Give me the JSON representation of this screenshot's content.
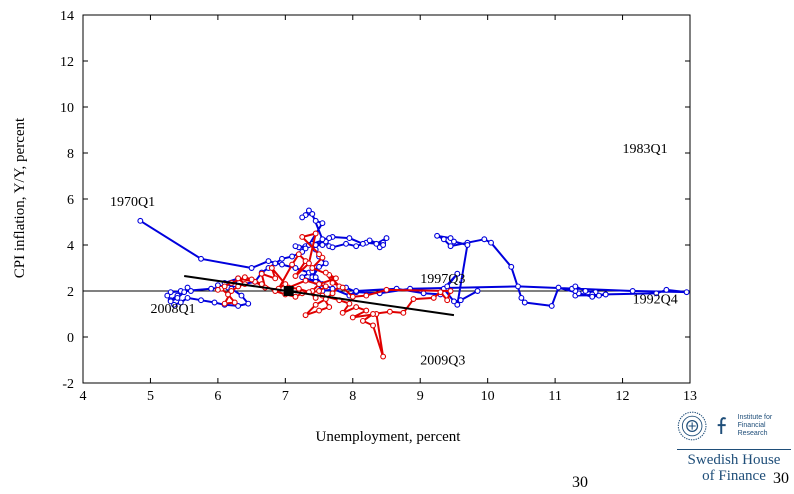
{
  "chart_data": {
    "type": "line",
    "xlabel": "Unemployment, percent",
    "ylabel": "CPI inflation, Y/Y, percent",
    "xlim": [
      4,
      13
    ],
    "ylim": [
      -2,
      14
    ],
    "xticks": [
      4,
      5,
      6,
      7,
      8,
      9,
      10,
      11,
      12,
      13
    ],
    "yticks": [
      -2,
      0,
      2,
      4,
      6,
      8,
      10,
      12,
      14
    ],
    "reference_line_y": 2,
    "colors": {
      "series1": "#0000dd",
      "series2": "#e00000",
      "trend": "#000000"
    },
    "series": [
      {
        "color": "#0000dd",
        "x": [
          4.85,
          5.75,
          6.5,
          6.75,
          6.95,
          7.15,
          7.35,
          7.4,
          7.5,
          7.25,
          7.45,
          7.55,
          7.9,
          8.05,
          8.4,
          8.85,
          10.45,
          12.15,
          12.95,
          12.65,
          12.5,
          11.75,
          11.3,
          11.35,
          11.3,
          11.25,
          11.3,
          11.45,
          11.6,
          11.55,
          11.65,
          11.75,
          11.55,
          11.05,
          10.95,
          10.55,
          10.5,
          10.35,
          10.05,
          9.95,
          9.7,
          9.45,
          9.35,
          9.25,
          9.45,
          9.5,
          9.7,
          9.55,
          9.6,
          9.85,
          9.6,
          9.5,
          9.35,
          9.55,
          9.4,
          9.3,
          9.05,
          8.65,
          8.05,
          7.95,
          7.7,
          7.55,
          7.45,
          7.4,
          7.6,
          7.5,
          7.45,
          7.4,
          7.55,
          7.6,
          7.65,
          7.7,
          7.9,
          8.05,
          8.2,
          8.35,
          8.5,
          8.45,
          8.4,
          8.45,
          8.25,
          8.15,
          7.95,
          7.7,
          7.55,
          7.3,
          7.45,
          7.6,
          7.65,
          7.55,
          7.4,
          7.3,
          7.25,
          7.35,
          7.45,
          7.55,
          7.35,
          7.2,
          7.15,
          7.3,
          7.25,
          7.1,
          6.95,
          6.85,
          6.75,
          6.65,
          6.55,
          6.2,
          5.9,
          5.3,
          5.25,
          5.3,
          5.4,
          5.45,
          5.6,
          5.55,
          5.5,
          5.4,
          5.3,
          5.35,
          5.45,
          5.55,
          5.75,
          5.95,
          6.1,
          6.3,
          6.45,
          6.35,
          6.2,
          6.1,
          6.3,
          6.25,
          6.15,
          6.05,
          6.0,
          6.15,
          6.2
        ],
        "y": [
          5.05,
          3.4,
          3.0,
          3.3,
          3.15,
          3.0,
          2.8,
          2.6,
          3.05,
          2.6,
          2.4,
          2.0,
          2.15,
          1.95,
          1.9,
          2.1,
          2.2,
          2.0,
          1.95,
          2.05,
          1.9,
          1.85,
          1.8,
          1.9,
          2.0,
          2.1,
          2.2,
          2.0,
          1.95,
          1.85,
          1.8,
          1.85,
          1.75,
          2.15,
          1.35,
          1.5,
          1.7,
          3.05,
          4.1,
          4.25,
          4.1,
          3.95,
          4.25,
          4.4,
          4.3,
          4.15,
          4.0,
          1.4,
          1.6,
          2.0,
          1.6,
          1.55,
          2.1,
          2.75,
          2.2,
          1.85,
          1.9,
          2.1,
          2.0,
          1.8,
          2.1,
          2.3,
          2.6,
          2.85,
          3.2,
          3.5,
          3.8,
          4.05,
          4.2,
          4.1,
          3.95,
          3.9,
          4.05,
          3.95,
          4.1,
          4.05,
          4.3,
          4.1,
          3.9,
          4.0,
          4.2,
          4.05,
          4.3,
          4.35,
          4.0,
          3.95,
          4.0,
          4.15,
          4.3,
          4.25,
          5.35,
          5.3,
          5.2,
          5.5,
          5.05,
          4.95,
          4.0,
          3.9,
          3.95,
          3.85,
          3.7,
          3.5,
          3.4,
          3.2,
          3.0,
          2.8,
          2.4,
          2.2,
          2.1,
          1.95,
          1.8,
          1.6,
          1.8,
          2.0,
          2.0,
          2.15,
          1.95,
          1.7,
          1.55,
          1.4,
          1.5,
          1.7,
          1.6,
          1.5,
          1.4,
          1.35,
          1.45,
          1.8,
          2.1,
          2.35,
          2.55,
          2.3,
          2.2,
          2.1,
          2.25,
          2.15,
          2.1
        ]
      },
      {
        "color": "#e00000",
        "x": [
          6.05,
          6.15,
          6.25,
          6.1,
          6.2,
          6.3,
          6.4,
          6.3,
          6.55,
          6.7,
          6.65,
          6.85,
          6.8,
          7.0,
          6.9,
          7.1,
          7.2,
          7.3,
          7.15,
          7.35,
          7.45,
          7.25,
          7.5,
          7.55,
          7.4,
          7.65,
          7.8,
          7.7,
          7.6,
          7.45,
          7.3,
          7.5,
          7.65,
          7.55,
          7.8,
          7.95,
          7.85,
          8.05,
          8.2,
          8.0,
          8.35,
          8.45,
          8.3,
          8.15,
          8.3,
          8.55,
          8.75,
          8.9,
          9.2,
          9.3,
          9.4,
          9.45,
          8.5,
          8.2,
          8.0,
          7.85,
          7.7,
          7.6,
          7.75,
          7.5,
          7.4,
          7.45,
          7.35,
          7.2,
          7.05,
          7.3,
          7.6,
          7.5,
          7.25,
          7.15,
          7.0,
          6.85,
          6.65,
          6.5,
          6.4,
          6.2,
          6.1,
          6.0
        ],
        "y": [
          2.1,
          1.85,
          1.5,
          1.45,
          2.0,
          2.2,
          2.3,
          2.55,
          2.4,
          2.15,
          2.75,
          2.55,
          3.0,
          2.3,
          2.1,
          3.15,
          3.6,
          3.3,
          2.65,
          3.2,
          4.5,
          4.35,
          3.6,
          3.45,
          3.0,
          2.7,
          2.2,
          1.9,
          1.65,
          1.4,
          0.95,
          1.15,
          1.3,
          1.8,
          1.6,
          1.45,
          1.05,
          1.3,
          1.15,
          0.85,
          1.0,
          -0.85,
          0.5,
          0.7,
          1.0,
          1.1,
          1.05,
          1.65,
          1.7,
          1.95,
          1.6,
          2.0,
          2.05,
          1.8,
          1.75,
          2.15,
          2.35,
          2.8,
          2.55,
          2.3,
          2.0,
          1.7,
          1.95,
          2.1,
          2.15,
          2.45,
          2.2,
          2.0,
          1.9,
          1.75,
          1.85,
          2.0,
          2.3,
          2.5,
          2.6,
          2.35,
          2.2,
          2.05
        ]
      }
    ],
    "trend_line": {
      "x": [
        5.5,
        9.5
      ],
      "y": [
        2.65,
        0.95
      ]
    },
    "marker": {
      "x": 7.05,
      "y": 2.0
    },
    "annotations": [
      {
        "text": "1970Q1",
        "x": 4.4,
        "y": 5.7
      },
      {
        "text": "1983Q1",
        "x": 12.0,
        "y": 8.0
      },
      {
        "text": "1997Q3",
        "x": 9.0,
        "y": 2.35
      },
      {
        "text": "1992Q4",
        "x": 12.15,
        "y": 1.45
      },
      {
        "text": "2008Q1",
        "x": 5.0,
        "y": 1.05
      },
      {
        "text": "2009Q3",
        "x": 9.0,
        "y": -1.2
      }
    ]
  },
  "logo": {
    "institute_line1": "Institute for",
    "institute_line2": "Financial Research",
    "name_line1": "Swedish House",
    "name_line2": "of Finance"
  },
  "page_number": "30"
}
